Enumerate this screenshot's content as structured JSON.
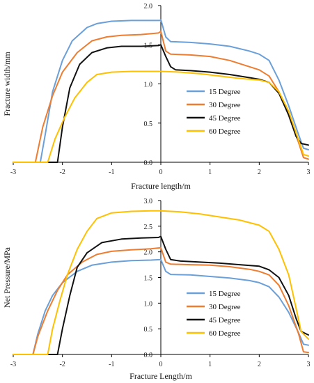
{
  "chart_data": [
    {
      "type": "line",
      "xlabel": "Fracture length/m",
      "ylabel": "Fracture width/mm",
      "xlim": [
        -3,
        3
      ],
      "ylim": [
        0,
        2
      ],
      "xticks": [
        "-3",
        "-2",
        "-1",
        "0",
        "1",
        "2",
        "3"
      ],
      "yticks": [
        "0.0",
        "0.5",
        "1.0",
        "1.5",
        "2.0"
      ],
      "legend_position": "center-right",
      "series": [
        {
          "name": "15 Degree",
          "color": "#6A9FD8",
          "points": [
            [
              -3.0,
              0
            ],
            [
              -2.45,
              0
            ],
            [
              -2.35,
              0.35
            ],
            [
              -2.2,
              0.9
            ],
            [
              -2.0,
              1.3
            ],
            [
              -1.8,
              1.55
            ],
            [
              -1.5,
              1.72
            ],
            [
              -1.3,
              1.77
            ],
            [
              -1.0,
              1.8
            ],
            [
              -0.6,
              1.81
            ],
            [
              -0.2,
              1.81
            ],
            [
              -0.02,
              1.81
            ],
            [
              0.0,
              1.82
            ],
            [
              0.1,
              1.6
            ],
            [
              0.2,
              1.54
            ],
            [
              0.6,
              1.53
            ],
            [
              1.0,
              1.51
            ],
            [
              1.4,
              1.48
            ],
            [
              1.8,
              1.42
            ],
            [
              2.0,
              1.38
            ],
            [
              2.2,
              1.3
            ],
            [
              2.4,
              1.05
            ],
            [
              2.6,
              0.72
            ],
            [
              2.8,
              0.35
            ],
            [
              2.9,
              0.18
            ],
            [
              3.0,
              0.16
            ]
          ]
        },
        {
          "name": "30 Degree",
          "color": "#ED7D31",
          "points": [
            [
              -3.0,
              0
            ],
            [
              -2.55,
              0
            ],
            [
              -2.4,
              0.45
            ],
            [
              -2.2,
              0.85
            ],
            [
              -2.0,
              1.15
            ],
            [
              -1.7,
              1.4
            ],
            [
              -1.4,
              1.55
            ],
            [
              -1.1,
              1.6
            ],
            [
              -0.8,
              1.62
            ],
            [
              -0.4,
              1.63
            ],
            [
              -0.05,
              1.65
            ],
            [
              0.0,
              1.67
            ],
            [
              0.1,
              1.42
            ],
            [
              0.2,
              1.38
            ],
            [
              0.6,
              1.37
            ],
            [
              1.0,
              1.35
            ],
            [
              1.4,
              1.3
            ],
            [
              1.8,
              1.22
            ],
            [
              2.0,
              1.18
            ],
            [
              2.2,
              1.1
            ],
            [
              2.4,
              0.9
            ],
            [
              2.6,
              0.6
            ],
            [
              2.8,
              0.25
            ],
            [
              2.9,
              0.06
            ],
            [
              3.0,
              0.04
            ]
          ]
        },
        {
          "name": "45 Degree",
          "color": "#111111",
          "points": [
            [
              -3.0,
              0
            ],
            [
              -2.1,
              0
            ],
            [
              -2.0,
              0.45
            ],
            [
              -1.85,
              0.95
            ],
            [
              -1.65,
              1.25
            ],
            [
              -1.4,
              1.4
            ],
            [
              -1.1,
              1.46
            ],
            [
              -0.8,
              1.48
            ],
            [
              -0.4,
              1.48
            ],
            [
              -0.05,
              1.49
            ],
            [
              0.0,
              1.5
            ],
            [
              0.1,
              1.35
            ],
            [
              0.2,
              1.22
            ],
            [
              0.3,
              1.18
            ],
            [
              0.6,
              1.17
            ],
            [
              1.0,
              1.15
            ],
            [
              1.4,
              1.12
            ],
            [
              1.8,
              1.08
            ],
            [
              2.0,
              1.06
            ],
            [
              2.2,
              1.02
            ],
            [
              2.4,
              0.88
            ],
            [
              2.6,
              0.6
            ],
            [
              2.75,
              0.33
            ],
            [
              2.85,
              0.24
            ],
            [
              3.0,
              0.22
            ]
          ]
        },
        {
          "name": "60 Degree",
          "color": "#FFC000",
          "points": [
            [
              -3.0,
              0
            ],
            [
              -2.3,
              0
            ],
            [
              -2.15,
              0.3
            ],
            [
              -1.95,
              0.58
            ],
            [
              -1.75,
              0.82
            ],
            [
              -1.5,
              1.02
            ],
            [
              -1.3,
              1.12
            ],
            [
              -1.0,
              1.15
            ],
            [
              -0.6,
              1.16
            ],
            [
              -0.2,
              1.16
            ],
            [
              0.0,
              1.16
            ],
            [
              0.4,
              1.15
            ],
            [
              0.8,
              1.13
            ],
            [
              1.2,
              1.1
            ],
            [
              1.6,
              1.07
            ],
            [
              2.0,
              1.05
            ],
            [
              2.2,
              1.02
            ],
            [
              2.4,
              0.9
            ],
            [
              2.6,
              0.65
            ],
            [
              2.8,
              0.28
            ],
            [
              2.9,
              0.1
            ],
            [
              3.0,
              0.08
            ]
          ]
        }
      ]
    },
    {
      "type": "line",
      "xlabel": "Fracture Length/m",
      "ylabel": "Net Pressure/MPa",
      "xlim": [
        -3,
        3
      ],
      "ylim": [
        0,
        3
      ],
      "xticks": [
        "-3",
        "-2",
        "-1",
        "0",
        "1",
        "2",
        "3"
      ],
      "yticks": [
        "0.0",
        "0.5",
        "1.0",
        "1.5",
        "2.0",
        "2.5",
        "3.0"
      ],
      "legend_position": "center-right",
      "series": [
        {
          "name": "15 Degree",
          "color": "#6A9FD8",
          "points": [
            [
              -3.0,
              0
            ],
            [
              -2.6,
              0
            ],
            [
              -2.5,
              0.4
            ],
            [
              -2.35,
              0.85
            ],
            [
              -2.2,
              1.15
            ],
            [
              -2.0,
              1.4
            ],
            [
              -1.7,
              1.62
            ],
            [
              -1.4,
              1.74
            ],
            [
              -1.0,
              1.8
            ],
            [
              -0.6,
              1.83
            ],
            [
              -0.2,
              1.84
            ],
            [
              0.0,
              1.85
            ],
            [
              0.1,
              1.62
            ],
            [
              0.2,
              1.56
            ],
            [
              0.6,
              1.55
            ],
            [
              1.0,
              1.52
            ],
            [
              1.4,
              1.49
            ],
            [
              1.8,
              1.44
            ],
            [
              2.0,
              1.4
            ],
            [
              2.2,
              1.32
            ],
            [
              2.4,
              1.12
            ],
            [
              2.6,
              0.82
            ],
            [
              2.8,
              0.42
            ],
            [
              2.9,
              0.2
            ],
            [
              3.0,
              0.18
            ]
          ]
        },
        {
          "name": "30 Degree",
          "color": "#ED7D31",
          "points": [
            [
              -3.0,
              0
            ],
            [
              -2.6,
              0
            ],
            [
              -2.5,
              0.35
            ],
            [
              -2.3,
              0.85
            ],
            [
              -2.1,
              1.25
            ],
            [
              -1.9,
              1.55
            ],
            [
              -1.6,
              1.8
            ],
            [
              -1.3,
              1.95
            ],
            [
              -1.0,
              2.01
            ],
            [
              -0.6,
              2.04
            ],
            [
              -0.2,
              2.06
            ],
            [
              0.0,
              2.08
            ],
            [
              0.1,
              1.8
            ],
            [
              0.2,
              1.76
            ],
            [
              0.6,
              1.75
            ],
            [
              1.0,
              1.74
            ],
            [
              1.4,
              1.71
            ],
            [
              1.8,
              1.66
            ],
            [
              2.0,
              1.62
            ],
            [
              2.2,
              1.55
            ],
            [
              2.4,
              1.35
            ],
            [
              2.6,
              0.95
            ],
            [
              2.8,
              0.4
            ],
            [
              2.9,
              0.05
            ],
            [
              3.0,
              0.04
            ]
          ]
        },
        {
          "name": "45 Degree",
          "color": "#111111",
          "points": [
            [
              -3.0,
              0
            ],
            [
              -2.1,
              0
            ],
            [
              -2.0,
              0.5
            ],
            [
              -1.85,
              1.15
            ],
            [
              -1.7,
              1.7
            ],
            [
              -1.5,
              1.98
            ],
            [
              -1.2,
              2.18
            ],
            [
              -0.8,
              2.25
            ],
            [
              -0.4,
              2.27
            ],
            [
              -0.05,
              2.28
            ],
            [
              0.0,
              2.3
            ],
            [
              0.1,
              2.05
            ],
            [
              0.2,
              1.85
            ],
            [
              0.4,
              1.82
            ],
            [
              0.8,
              1.8
            ],
            [
              1.2,
              1.78
            ],
            [
              1.6,
              1.75
            ],
            [
              2.0,
              1.72
            ],
            [
              2.2,
              1.65
            ],
            [
              2.4,
              1.5
            ],
            [
              2.6,
              1.15
            ],
            [
              2.75,
              0.7
            ],
            [
              2.85,
              0.45
            ],
            [
              3.0,
              0.38
            ]
          ]
        },
        {
          "name": "60 Degree",
          "color": "#FFC000",
          "points": [
            [
              -3.0,
              0
            ],
            [
              -2.3,
              0
            ],
            [
              -2.2,
              0.5
            ],
            [
              -2.05,
              1.05
            ],
            [
              -1.9,
              1.55
            ],
            [
              -1.7,
              2.05
            ],
            [
              -1.5,
              2.4
            ],
            [
              -1.3,
              2.65
            ],
            [
              -1.0,
              2.76
            ],
            [
              -0.6,
              2.79
            ],
            [
              -0.2,
              2.8
            ],
            [
              0.0,
              2.8
            ],
            [
              0.4,
              2.78
            ],
            [
              0.8,
              2.74
            ],
            [
              1.2,
              2.68
            ],
            [
              1.6,
              2.62
            ],
            [
              2.0,
              2.52
            ],
            [
              2.2,
              2.4
            ],
            [
              2.4,
              2.05
            ],
            [
              2.6,
              1.55
            ],
            [
              2.75,
              0.9
            ],
            [
              2.85,
              0.45
            ],
            [
              3.0,
              0.3
            ]
          ]
        }
      ]
    }
  ]
}
